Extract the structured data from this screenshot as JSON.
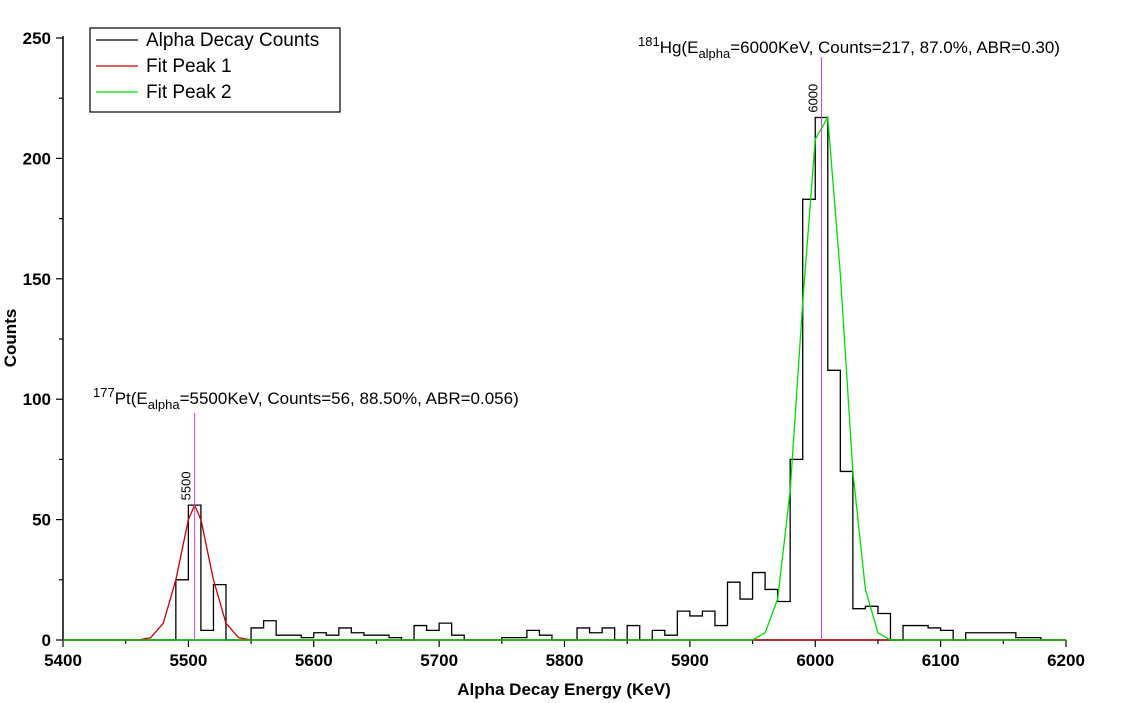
{
  "chart_data": {
    "type": "line",
    "xlabel": "Alpha Decay Energy (KeV)",
    "ylabel": "Counts",
    "xlim": [
      5400,
      6200
    ],
    "ylim": [
      0,
      250
    ],
    "x_ticks": [
      5400,
      5500,
      5600,
      5700,
      5800,
      5900,
      6000,
      6100,
      6200
    ],
    "y_ticks": [
      0,
      50,
      100,
      150,
      200,
      250
    ],
    "grid": false,
    "legend_position": "top-left",
    "bin_width": 10,
    "series": [
      {
        "name": "Alpha Decay Counts",
        "color": "#000000",
        "style": "step",
        "x": [
          5400,
          5410,
          5420,
          5430,
          5440,
          5450,
          5460,
          5470,
          5480,
          5490,
          5500,
          5510,
          5520,
          5530,
          5540,
          5550,
          5560,
          5570,
          5580,
          5590,
          5600,
          5610,
          5620,
          5630,
          5640,
          5650,
          5660,
          5670,
          5680,
          5690,
          5700,
          5710,
          5720,
          5730,
          5740,
          5750,
          5760,
          5770,
          5780,
          5790,
          5800,
          5810,
          5820,
          5830,
          5840,
          5850,
          5860,
          5870,
          5880,
          5890,
          5900,
          5910,
          5920,
          5930,
          5940,
          5950,
          5960,
          5970,
          5980,
          5990,
          6000,
          6010,
          6020,
          6030,
          6040,
          6050,
          6060,
          6070,
          6080,
          6090,
          6100,
          6110,
          6120,
          6130,
          6140,
          6150,
          6160,
          6170,
          6180,
          6190
        ],
        "y": [
          0,
          0,
          0,
          0,
          0,
          0,
          0,
          0,
          0,
          25,
          56,
          4,
          23,
          0,
          0,
          5,
          8,
          2,
          2,
          1,
          3,
          2,
          5,
          3,
          2,
          2,
          1,
          0,
          6,
          4,
          7,
          2,
          0,
          0,
          0,
          1,
          1,
          4,
          2,
          0,
          0,
          5,
          3,
          5,
          0,
          6,
          0,
          4,
          2,
          12,
          10,
          12,
          6,
          24,
          17,
          28,
          21,
          16,
          75,
          183,
          217,
          112,
          70,
          13,
          14,
          11,
          0,
          6,
          6,
          5,
          4,
          0,
          3,
          3,
          3,
          3,
          1,
          1,
          0,
          0
        ]
      },
      {
        "name": "Fit Peak 1",
        "color": "#cc0000",
        "style": "line",
        "x": [
          5400,
          5460,
          5470,
          5480,
          5490,
          5500,
          5505,
          5510,
          5520,
          5530,
          5540,
          5550,
          6200
        ],
        "y": [
          0,
          0,
          1,
          7,
          25,
          50,
          56,
          50,
          25,
          7,
          1,
          0,
          0
        ]
      },
      {
        "name": "Fit Peak 2",
        "color": "#00dd00",
        "style": "line",
        "x": [
          5400,
          5950,
          5960,
          5970,
          5980,
          5990,
          6000,
          6010,
          6020,
          6030,
          6040,
          6050,
          6060,
          6200
        ],
        "y": [
          0,
          0,
          3,
          17,
          62,
          140,
          208,
          217,
          152,
          70,
          21,
          3,
          0,
          0
        ]
      }
    ],
    "annotations": [
      {
        "prefix_sup": "177",
        "prefix": "Pt(E",
        "sub": "alpha",
        "rest": "=5500KeV, Counts=56, 88.50%, ABR=0.056)",
        "peak_x": 5505,
        "peak_label": "5500",
        "line_color": "#cc44cc"
      },
      {
        "prefix_sup": "181",
        "prefix": "Hg(E",
        "sub": "alpha",
        "rest": "=6000KeV, Counts=217, 87.0%, ABR=0.30)",
        "peak_x": 6005,
        "peak_label": "6000",
        "line_color": "#cc44cc"
      }
    ]
  }
}
